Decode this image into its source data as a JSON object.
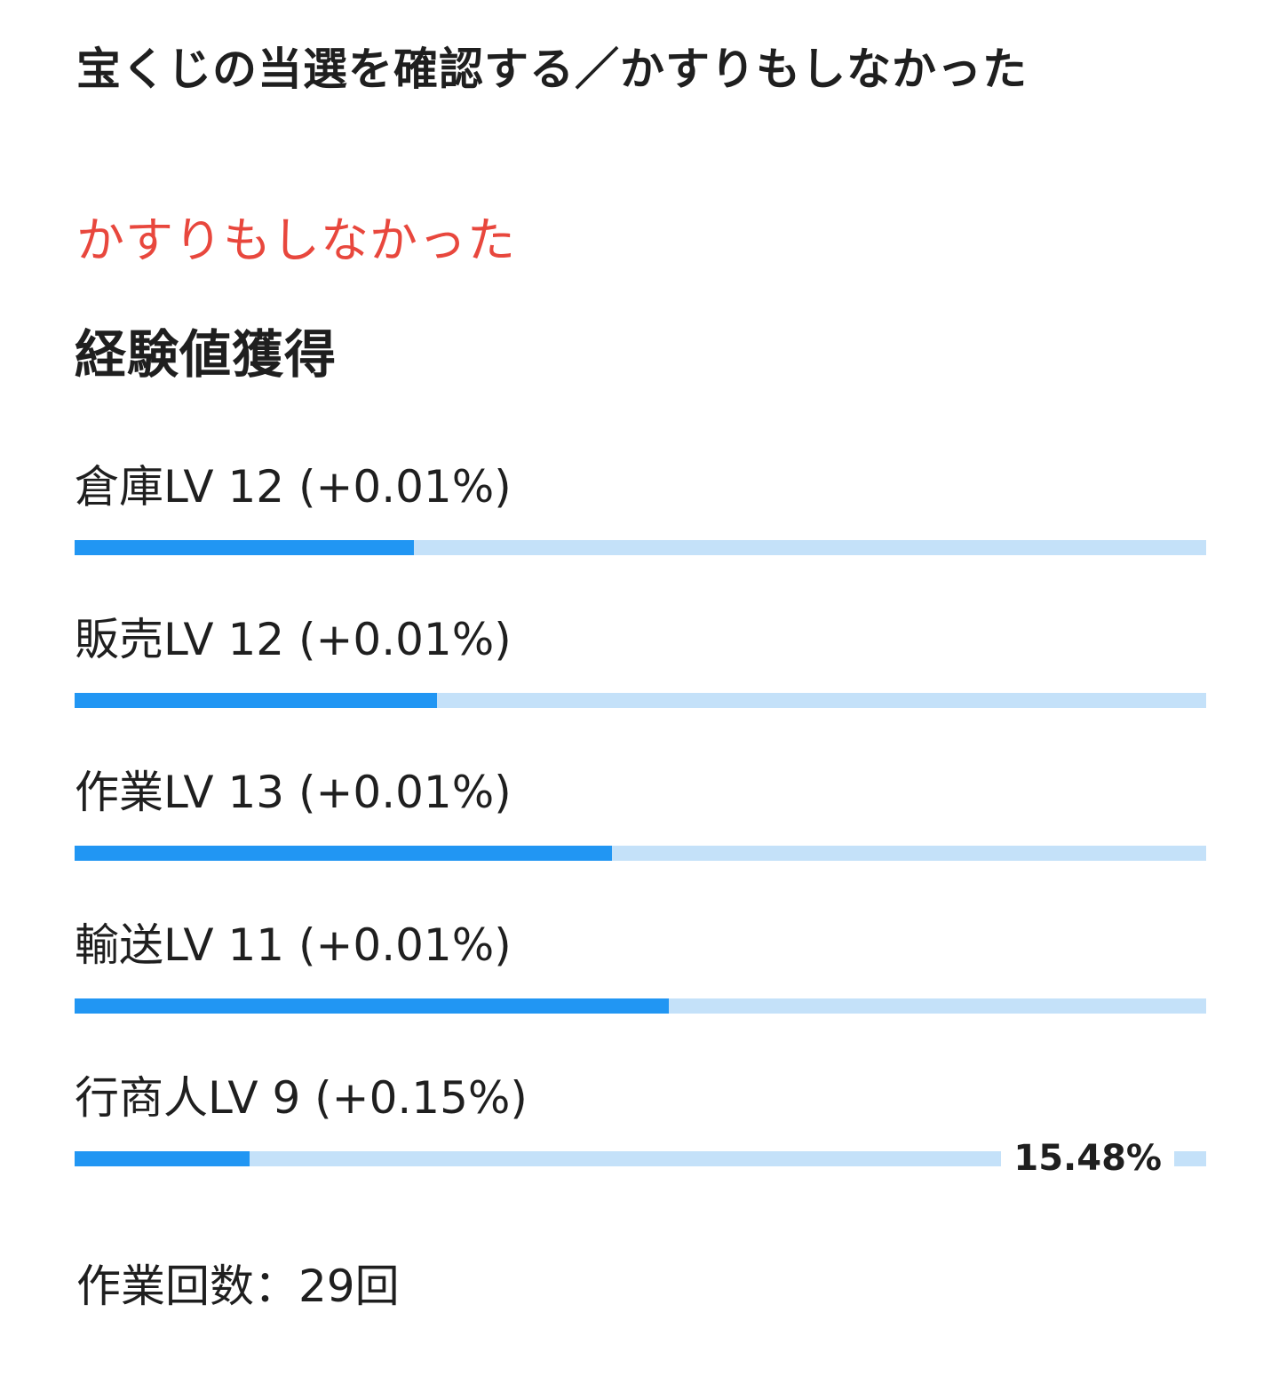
{
  "page_title": "宝くじの当選を確認する／かすりもしなかった",
  "result_text": "かすりもしなかった",
  "section_heading": "経験値獲得",
  "skills": [
    {
      "label": "倉庫LV 12 (+0.01%)",
      "progress": 0.3
    },
    {
      "label": "販売LV 12 (+0.01%)",
      "progress": 0.32
    },
    {
      "label": "作業LV 13 (+0.01%)",
      "progress": 0.475
    },
    {
      "label": "輸送LV 11 (+0.01%)",
      "progress": 0.525
    },
    {
      "label": "行商人LV 9 (+0.15%)",
      "progress": 0.1548,
      "percent_label": "15.48%"
    }
  ],
  "work_count": "作業回数：29回",
  "colors": {
    "accent_red": "#e8473d",
    "bar_fill": "#2196f3",
    "bar_track": "#c4e1f9"
  }
}
